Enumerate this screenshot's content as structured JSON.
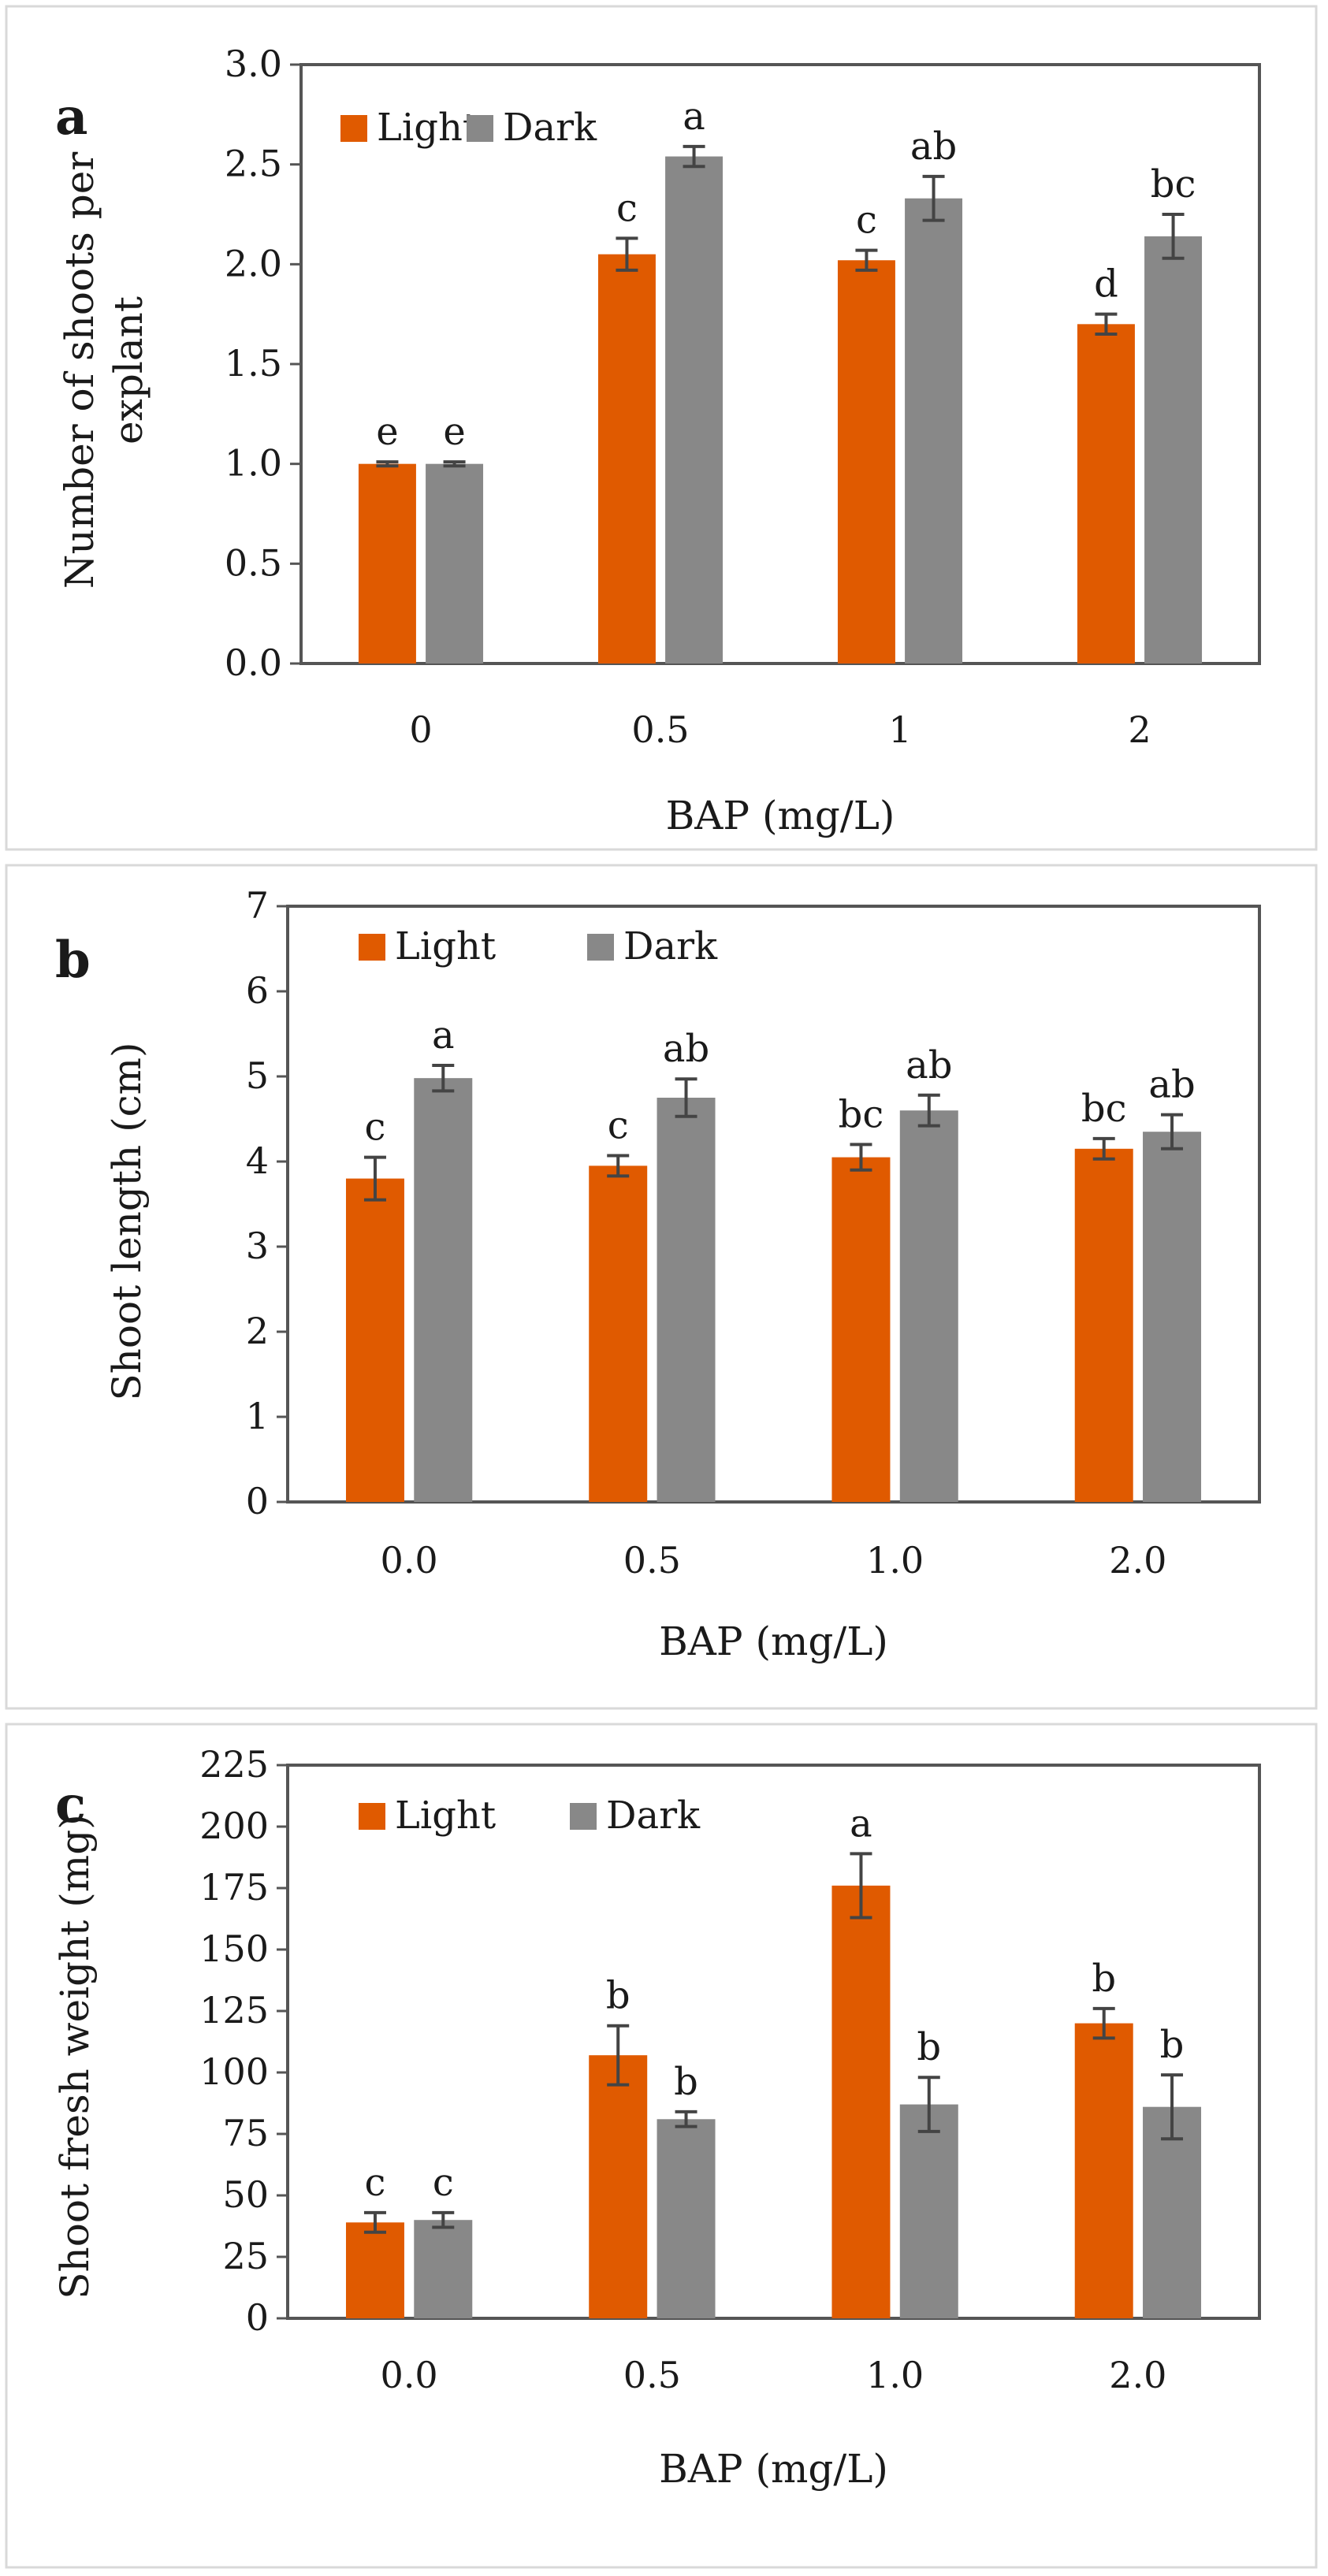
{
  "colors": {
    "light": "#E05A00",
    "dark": "#888888",
    "axis": "#555555",
    "frame": "#d9d9d9"
  },
  "chart_data": [
    {
      "type": "bar",
      "panel_label": "a",
      "categories": [
        "0",
        "0.5",
        "1",
        "2"
      ],
      "series": [
        {
          "name": "Light",
          "values": [
            1.0,
            2.05,
            2.02,
            1.7
          ],
          "errors": [
            0.01,
            0.08,
            0.05,
            0.05
          ],
          "letters": [
            "e",
            "c",
            "c",
            "d"
          ]
        },
        {
          "name": "Dark",
          "values": [
            1.0,
            2.54,
            2.33,
            2.14
          ],
          "errors": [
            0.01,
            0.05,
            0.11,
            0.11
          ],
          "letters": [
            "e",
            "a",
            "ab",
            "bc"
          ]
        }
      ],
      "ylim": [
        0,
        3.0
      ],
      "yticks": [
        "0.0",
        "0.5",
        "1.0",
        "1.5",
        "2.0",
        "2.5",
        "3.0"
      ],
      "xlabel": "BAP  (mg/L)",
      "ylabel": [
        "Number of shoots per",
        "explant"
      ],
      "legend_position": "top-left"
    },
    {
      "type": "bar",
      "panel_label": "b",
      "categories": [
        "0.0",
        "0.5",
        "1.0",
        "2.0"
      ],
      "series": [
        {
          "name": "Light",
          "values": [
            3.8,
            3.95,
            4.05,
            4.15
          ],
          "errors": [
            0.25,
            0.12,
            0.15,
            0.12
          ],
          "letters": [
            "c",
            "c",
            "bc",
            "bc"
          ]
        },
        {
          "name": "Dark",
          "values": [
            4.98,
            4.75,
            4.6,
            4.35
          ],
          "errors": [
            0.15,
            0.22,
            0.18,
            0.2
          ],
          "letters": [
            "a",
            "ab",
            "ab",
            "ab"
          ]
        }
      ],
      "ylim": [
        0,
        7
      ],
      "yticks": [
        "0",
        "1",
        "2",
        "3",
        "4",
        "5",
        "6",
        "7"
      ],
      "xlabel": "BAP  (mg/L)",
      "ylabel": [
        "Shoot length (cm)"
      ],
      "legend_position": "top-left"
    },
    {
      "type": "bar",
      "panel_label": "c",
      "categories": [
        "0.0",
        "0.5",
        "1.0",
        "2.0"
      ],
      "series": [
        {
          "name": "Light",
          "values": [
            39,
            107,
            176,
            120
          ],
          "errors": [
            4,
            12,
            13,
            6
          ],
          "letters": [
            "c",
            "b",
            "a",
            "b"
          ]
        },
        {
          "name": "Dark",
          "values": [
            40,
            81,
            87,
            86
          ],
          "errors": [
            3,
            3,
            11,
            13
          ],
          "letters": [
            "c",
            "b",
            "b",
            "b"
          ]
        }
      ],
      "ylim": [
        0,
        225
      ],
      "yticks": [
        "0",
        "25",
        "50",
        "75",
        "100",
        "125",
        "150",
        "175",
        "200",
        "225"
      ],
      "xlabel": "BAP  (mg/L)",
      "ylabel": [
        "Shoot fresh weight (mg)"
      ],
      "legend_position": "top-left"
    }
  ]
}
